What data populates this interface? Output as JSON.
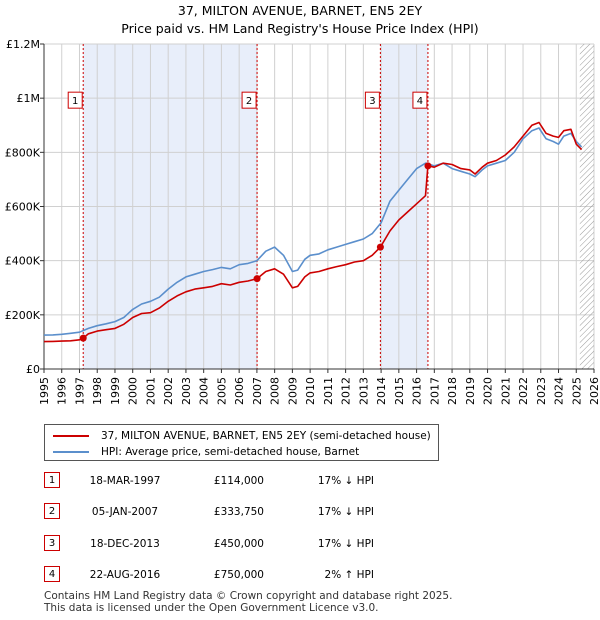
{
  "title": "37, MILTON AVENUE, BARNET, EN5 2EY",
  "subtitle": "Price paid vs. HM Land Registry's House Price Index (HPI)",
  "colors": {
    "property": "#cc0000",
    "hpi": "#5b8fcc",
    "shade": "#e8eefa",
    "grid": "#d0d0d0",
    "marker_border": "#cc0000"
  },
  "chart_data": {
    "type": "line",
    "title": "37, MILTON AVENUE, BARNET, EN5 2EY",
    "subtitle": "Price paid vs. HM Land Registry's House Price Index (HPI)",
    "xlim": [
      1995,
      2026
    ],
    "ylim": [
      0,
      1200000
    ],
    "x_ticks": [
      "1995",
      "1996",
      "1997",
      "1998",
      "1999",
      "2000",
      "2001",
      "2002",
      "2003",
      "2004",
      "2005",
      "2006",
      "2007",
      "2008",
      "2009",
      "2010",
      "2011",
      "2012",
      "2013",
      "2014",
      "2015",
      "2016",
      "2017",
      "2018",
      "2019",
      "2020",
      "2021",
      "2022",
      "2023",
      "2024",
      "2025",
      "2026"
    ],
    "y_ticks": [
      {
        "value": 0,
        "label": "£0"
      },
      {
        "value": 200000,
        "label": "£200K"
      },
      {
        "value": 400000,
        "label": "£400K"
      },
      {
        "value": 600000,
        "label": "£600K"
      },
      {
        "value": 800000,
        "label": "£800K"
      },
      {
        "value": 1000000,
        "label": "£1M"
      },
      {
        "value": 1200000,
        "label": "£1.2M"
      }
    ],
    "grid": true,
    "shaded_periods": [
      [
        1997.21,
        2007.01
      ],
      [
        2013.96,
        2016.64
      ]
    ],
    "forecast_hatch_from": 2025.2,
    "series": [
      {
        "name": "37, MILTON AVENUE, BARNET, EN5 2EY (semi-detached house)",
        "color": "#cc0000",
        "x": [
          1995.0,
          1995.5,
          1996.0,
          1996.5,
          1997.0,
          1997.21,
          1997.5,
          1998.0,
          1998.5,
          1999.0,
          1999.5,
          2000.0,
          2000.5,
          2001.0,
          2001.5,
          2002.0,
          2002.5,
          2003.0,
          2003.5,
          2004.0,
          2004.5,
          2005.0,
          2005.5,
          2006.0,
          2006.5,
          2007.01,
          2007.5,
          2008.0,
          2008.5,
          2009.0,
          2009.3,
          2009.7,
          2010.0,
          2010.5,
          2011.0,
          2011.5,
          2012.0,
          2012.5,
          2013.0,
          2013.5,
          2013.96,
          2014.5,
          2015.0,
          2015.5,
          2016.0,
          2016.5,
          2016.64,
          2017.0,
          2017.5,
          2018.0,
          2018.5,
          2019.0,
          2019.3,
          2019.7,
          2020.0,
          2020.5,
          2021.0,
          2021.5,
          2022.0,
          2022.5,
          2022.9,
          2023.3,
          2023.7,
          2024.0,
          2024.3,
          2024.7,
          2025.0,
          2025.3
        ],
        "y": [
          101000,
          102000,
          103000,
          104000,
          108000,
          114000,
          130000,
          140000,
          145000,
          150000,
          165000,
          190000,
          205000,
          208000,
          225000,
          250000,
          270000,
          285000,
          295000,
          300000,
          305000,
          315000,
          310000,
          320000,
          325000,
          333750,
          360000,
          370000,
          350000,
          300000,
          305000,
          340000,
          355000,
          360000,
          370000,
          378000,
          385000,
          395000,
          400000,
          420000,
          450000,
          510000,
          550000,
          580000,
          610000,
          640000,
          750000,
          745000,
          760000,
          755000,
          740000,
          735000,
          720000,
          745000,
          760000,
          770000,
          790000,
          820000,
          860000,
          900000,
          910000,
          870000,
          860000,
          855000,
          880000,
          885000,
          830000,
          810000
        ]
      },
      {
        "name": "HPI: Average price, semi-detached house, Barnet",
        "color": "#5b8fcc",
        "x": [
          1995.0,
          1995.5,
          1996.0,
          1996.5,
          1997.0,
          1997.5,
          1998.0,
          1998.5,
          1999.0,
          1999.5,
          2000.0,
          2000.5,
          2001.0,
          2001.5,
          2002.0,
          2002.5,
          2003.0,
          2003.5,
          2004.0,
          2004.5,
          2005.0,
          2005.5,
          2006.0,
          2006.5,
          2007.0,
          2007.5,
          2008.0,
          2008.5,
          2009.0,
          2009.3,
          2009.7,
          2010.0,
          2010.5,
          2011.0,
          2011.5,
          2012.0,
          2012.5,
          2013.0,
          2013.5,
          2014.0,
          2014.5,
          2015.0,
          2015.5,
          2016.0,
          2016.5,
          2017.0,
          2017.5,
          2018.0,
          2018.5,
          2019.0,
          2019.3,
          2019.7,
          2020.0,
          2020.5,
          2021.0,
          2021.5,
          2022.0,
          2022.5,
          2022.9,
          2023.3,
          2023.7,
          2024.0,
          2024.3,
          2024.7,
          2025.0,
          2025.3
        ],
        "y": [
          125000,
          126000,
          128000,
          132000,
          136000,
          150000,
          160000,
          167000,
          175000,
          190000,
          220000,
          240000,
          250000,
          265000,
          295000,
          320000,
          340000,
          350000,
          360000,
          367000,
          375000,
          370000,
          385000,
          390000,
          400000,
          435000,
          450000,
          420000,
          360000,
          365000,
          405000,
          420000,
          425000,
          440000,
          450000,
          460000,
          470000,
          480000,
          500000,
          540000,
          620000,
          660000,
          700000,
          740000,
          760000,
          750000,
          760000,
          740000,
          730000,
          720000,
          710000,
          735000,
          750000,
          760000,
          770000,
          800000,
          850000,
          880000,
          890000,
          850000,
          840000,
          830000,
          860000,
          870000,
          840000,
          820000
        ]
      }
    ],
    "sales": [
      {
        "id": "1",
        "x": 1997.21,
        "y": 114000
      },
      {
        "id": "2",
        "x": 2007.01,
        "y": 333750
      },
      {
        "id": "3",
        "x": 2013.96,
        "y": 450000
      },
      {
        "id": "4",
        "x": 2016.64,
        "y": 750000
      }
    ],
    "sale_label_value": 1000000
  },
  "legend": {
    "property_label": "37, MILTON AVENUE, BARNET, EN5 2EY (semi-detached house)",
    "hpi_label": "HPI: Average price, semi-detached house, Barnet"
  },
  "table": [
    {
      "num": "1",
      "date": "18-MAR-1997",
      "price": "£114,000",
      "hpi": "17% ↓ HPI"
    },
    {
      "num": "2",
      "date": "05-JAN-2007",
      "price": "£333,750",
      "hpi": "17% ↓ HPI"
    },
    {
      "num": "3",
      "date": "18-DEC-2013",
      "price": "£450,000",
      "hpi": "17% ↓ HPI"
    },
    {
      "num": "4",
      "date": "22-AUG-2016",
      "price": "£750,000",
      "hpi": "2% ↑ HPI"
    }
  ],
  "footer": {
    "line1": "Contains HM Land Registry data © Crown copyright and database right 2025.",
    "line2": "This data is licensed under the Open Government Licence v3.0."
  }
}
